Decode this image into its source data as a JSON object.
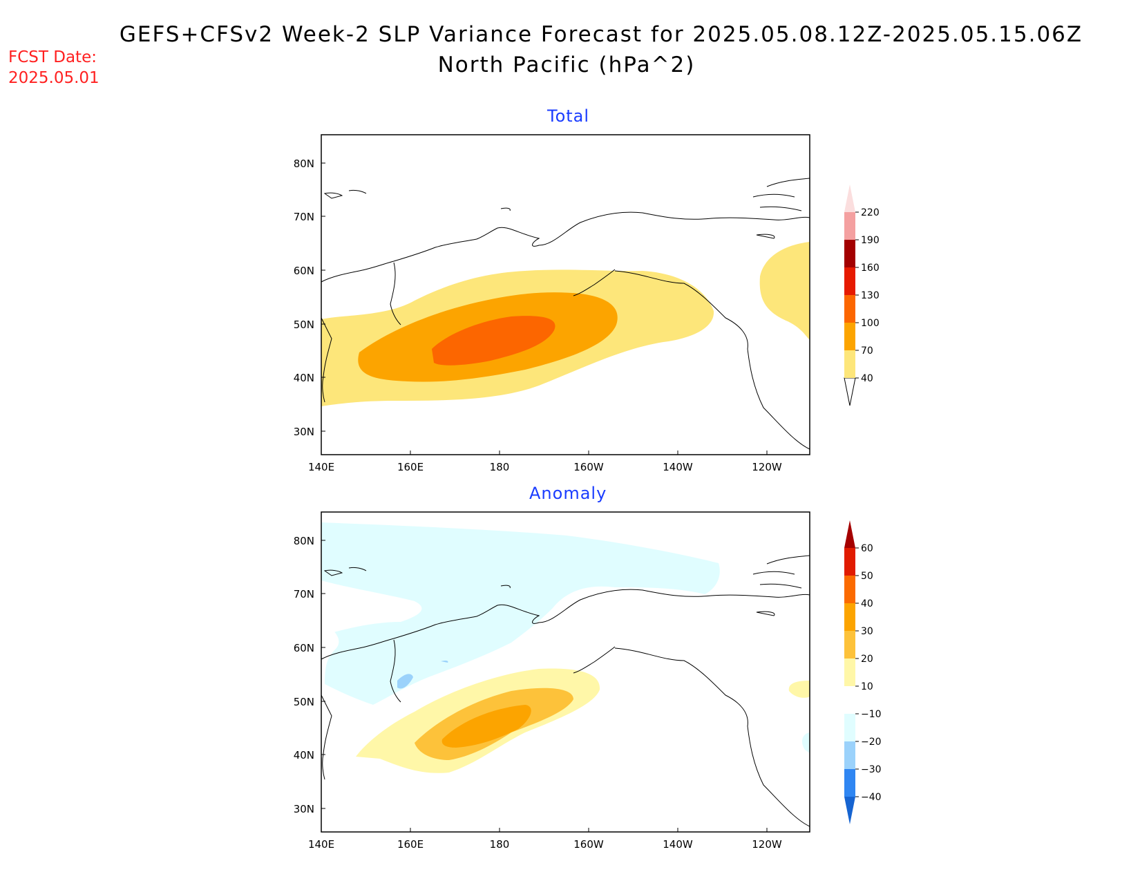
{
  "title": {
    "line1": "GEFS+CFSv2 Week-2 SLP Variance Forecast for 2025.05.08.12Z-2025.05.15.06Z",
    "line2": "North Pacific (hPa^2)"
  },
  "forecast_date": {
    "label": "FCST Date:",
    "value": "2025.05.01"
  },
  "colors": {
    "title_text": "#1a3cff",
    "fcst_text": "#ff2020"
  },
  "chart_data": [
    {
      "type": "heatmap",
      "title": "Total",
      "projection": "lat-lon",
      "lon_range": [
        140,
        250
      ],
      "lat_range": [
        25,
        85
      ],
      "x_ticks": [
        "140E",
        "160E",
        "180",
        "160W",
        "140W",
        "120W"
      ],
      "y_ticks": [
        "30N",
        "40N",
        "50N",
        "60N",
        "70N",
        "80N"
      ],
      "colorbar": {
        "levels": [
          "40",
          "70",
          "100",
          "130",
          "160",
          "190",
          "220"
        ],
        "colors": [
          "#fde67a",
          "#fca400",
          "#fc6600",
          "#e61a00",
          "#a30000",
          "#f4a0a0",
          "#fbdede"
        ],
        "extend_top": true,
        "extend_bottom": true
      },
      "features": [
        {
          "name": "main variance maximum",
          "center": [
            182,
            46
          ],
          "max_level": "100-130"
        },
        {
          "name": "Gulf of Alaska / Bering extension",
          "level": "40-70",
          "extent_lon": [
            140,
            230
          ]
        },
        {
          "name": "Hudson Bay region",
          "level": "40-70",
          "center": [
            248,
            57
          ]
        }
      ]
    },
    {
      "type": "heatmap",
      "title": "Anomaly",
      "projection": "lat-lon",
      "lon_range": [
        140,
        250
      ],
      "lat_range": [
        25,
        85
      ],
      "x_ticks": [
        "140E",
        "160E",
        "180",
        "160W",
        "140W",
        "120W"
      ],
      "y_ticks": [
        "30N",
        "40N",
        "50N",
        "60N",
        "70N",
        "80N"
      ],
      "colorbar": {
        "levels": [
          "60",
          "50",
          "40",
          "30",
          "20",
          "10",
          "−10",
          "−20",
          "−30",
          "−40"
        ],
        "colors": [
          "#a50000",
          "#e11b00",
          "#fb6a00",
          "#fca400",
          "#fdc23a",
          "#fff7a8",
          "#ffffff",
          "#e0fdff",
          "#9bd2fb",
          "#2f86f2",
          "#1664d1"
        ],
        "extend_top": true,
        "extend_bottom": true
      },
      "features": [
        {
          "name": "positive anomaly maximum",
          "center": [
            180,
            45
          ],
          "max_level": "30-40"
        },
        {
          "name": "negative anomaly band",
          "level": "-10 to -20",
          "extent_lon": [
            140,
            230
          ]
        },
        {
          "name": "local minimum near Kamchatka",
          "level": "-20 to -30"
        }
      ]
    }
  ]
}
